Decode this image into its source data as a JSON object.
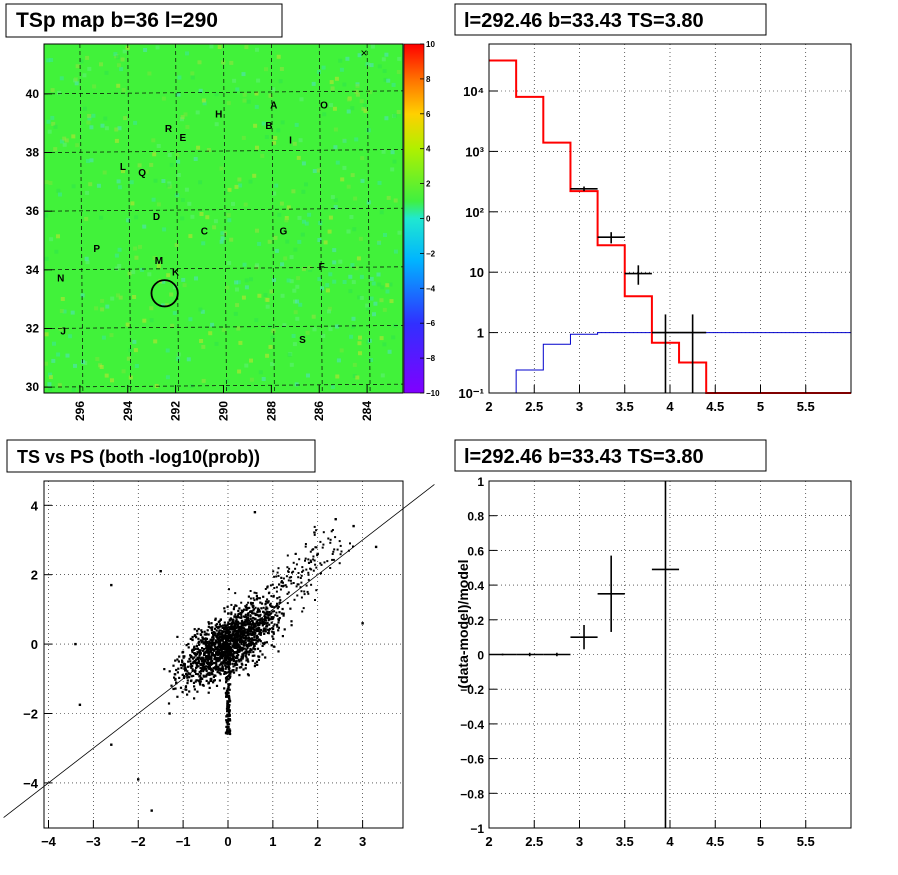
{
  "colors": {
    "frame": "#000000",
    "grid": "#000000",
    "map_background": "#41f23a",
    "spectrum_line": "#ff0000",
    "model_line": "#0000cc",
    "data_marks": "#000000"
  },
  "panels": {
    "tsmap_title": "TSp map b=36 l=290",
    "spectrum_title": "l=292.46 b=33.43 TS=3.80",
    "scatter_title": "TS vs PS (both -log10(prob))",
    "residual_title": "l=292.46 b=33.43 TS=3.80",
    "residual_ylabel": "(data-model)/model"
  },
  "chart_data": [
    {
      "type": "heatmap",
      "title": "TSp map b=36 l=290",
      "x_ticks": [
        "296",
        "294",
        "292",
        "290",
        "288",
        "286",
        "284"
      ],
      "y_ticks": [
        "40",
        "38",
        "36",
        "34",
        "32",
        "30"
      ],
      "xlim": [
        297.5,
        282.5
      ],
      "ylim": [
        29.8,
        41.7
      ],
      "colorbar": {
        "range": [
          -10,
          10
        ],
        "ticks": [
          "10",
          "8",
          "6",
          "4",
          "2",
          "0",
          "−2",
          "−4",
          "−6",
          "−8",
          "−10"
        ]
      },
      "labels": [
        {
          "text": "A",
          "l": 287.9,
          "b": 39.5
        },
        {
          "text": "O",
          "l": 285.8,
          "b": 39.5
        },
        {
          "text": "H",
          "l": 290.2,
          "b": 39.2
        },
        {
          "text": "R",
          "l": 292.3,
          "b": 38.7
        },
        {
          "text": "B",
          "l": 288.1,
          "b": 38.8
        },
        {
          "text": "E",
          "l": 291.7,
          "b": 38.4
        },
        {
          "text": "I",
          "l": 287.2,
          "b": 38.3
        },
        {
          "text": "L",
          "l": 294.2,
          "b": 37.4
        },
        {
          "text": "Q",
          "l": 293.4,
          "b": 37.2
        },
        {
          "text": "D",
          "l": 292.8,
          "b": 35.7
        },
        {
          "text": "C",
          "l": 290.8,
          "b": 35.2
        },
        {
          "text": "G",
          "l": 287.5,
          "b": 35.2
        },
        {
          "text": "P",
          "l": 295.3,
          "b": 34.6
        },
        {
          "text": "M",
          "l": 292.7,
          "b": 34.2
        },
        {
          "text": "F",
          "l": 285.9,
          "b": 34.0
        },
        {
          "text": "K",
          "l": 292.0,
          "b": 33.8
        },
        {
          "text": "N",
          "l": 296.8,
          "b": 33.6
        },
        {
          "text": "J",
          "l": 296.7,
          "b": 31.8
        },
        {
          "text": "S",
          "l": 286.7,
          "b": 31.5
        }
      ],
      "marker": {
        "l": 292.46,
        "b": 33.2,
        "radius_deg": 0.55
      }
    },
    {
      "type": "line",
      "title": "l=292.46 b=33.43 TS=3.80",
      "xlim": [
        2,
        6
      ],
      "ylim": [
        0.1,
        60000
      ],
      "yscale": "log",
      "x_ticks": [
        "2",
        "2.5",
        "3",
        "3.5",
        "4",
        "4.5",
        "5",
        "5.5"
      ],
      "y_ticks": [
        "10⁻¹",
        "1",
        "10",
        "10²",
        "10³",
        "10⁴"
      ],
      "grid": true,
      "series": [
        {
          "kind": "model_total",
          "edges": [
            2.0,
            2.3,
            2.6,
            2.9,
            3.2,
            3.5,
            3.8,
            4.1,
            4.4,
            6.0
          ],
          "values": [
            32000,
            8000,
            1400,
            220,
            28,
            4.0,
            0.68,
            0.32,
            0.1
          ]
        },
        {
          "kind": "model_component",
          "edges": [
            2.0,
            2.3,
            2.6,
            2.9,
            3.2,
            3.5,
            3.8,
            4.1,
            4.4,
            6.0
          ],
          "values": [
            0.1,
            0.24,
            0.64,
            0.94,
            1.0,
            1.0,
            1.0,
            1.0,
            1.0
          ]
        },
        {
          "kind": "data_points",
          "points": [
            {
              "x": 3.05,
              "y": 240,
              "xerr": 0.15,
              "ylo": 220,
              "yhi": 262
            },
            {
              "x": 3.35,
              "y": 38,
              "xerr": 0.15,
              "ylo": 30,
              "yhi": 46
            },
            {
              "x": 3.65,
              "y": 9.5,
              "xerr": 0.15,
              "ylo": 6.2,
              "yhi": 13
            },
            {
              "x": 3.95,
              "y": 1.0,
              "xerr": 0.15,
              "ylo": 0.1,
              "yhi": 2.0
            },
            {
              "x": 4.25,
              "y": 1.0,
              "xerr": 0.15,
              "ylo": 0.1,
              "yhi": 2.0
            }
          ]
        }
      ]
    },
    {
      "type": "scatter",
      "title": "TS vs PS (both -log10(prob))",
      "xlim": [
        -4.1,
        3.9
      ],
      "ylim": [
        -5.3,
        4.7
      ],
      "x_ticks": [
        "−4",
        "−3",
        "−2",
        "−1",
        "0",
        "1",
        "2",
        "3"
      ],
      "y_ticks": [
        "4",
        "2",
        "0",
        "−2",
        "−4"
      ],
      "grid": true,
      "diagonal": {
        "slope": 1,
        "intercept": 0
      },
      "points_sample": [
        {
          "x": 2.4,
          "y": 3.6
        },
        {
          "x": 2.8,
          "y": 3.4
        },
        {
          "x": 3.0,
          "y": 0.6
        },
        {
          "x": 3.3,
          "y": 2.8
        },
        {
          "x": -3.4,
          "y": 0.0
        },
        {
          "x": -3.3,
          "y": -1.75
        },
        {
          "x": -2.6,
          "y": -2.9
        },
        {
          "x": -2.6,
          "y": 1.7
        },
        {
          "x": -1.7,
          "y": -4.8
        },
        {
          "x": -2.0,
          "y": -3.9
        },
        {
          "x": -1.3,
          "y": -2.0
        },
        {
          "x": 0.6,
          "y": 3.8
        },
        {
          "x": 2.0,
          "y": 2.6
        },
        {
          "x": -1.5,
          "y": 2.1
        }
      ]
    },
    {
      "type": "line",
      "title": "l=292.46 b=33.43 TS=3.80",
      "ylabel": "(data-model)/model",
      "xlim": [
        2,
        6
      ],
      "ylim": [
        -1,
        1
      ],
      "x_ticks": [
        "2",
        "2.5",
        "3",
        "3.5",
        "4",
        "4.5",
        "5",
        "5.5"
      ],
      "y_ticks": [
        "1",
        "0.8",
        "0.6",
        "0.4",
        "0.2",
        "0",
        "−0.2",
        "−0.4",
        "−0.6",
        "−0.8",
        "−1"
      ],
      "grid": true,
      "points": [
        {
          "x": 2.15,
          "y": 0.0,
          "xerr": 0.15,
          "ylo": -0.005,
          "yhi": 0.005
        },
        {
          "x": 2.45,
          "y": 0.0,
          "xerr": 0.15,
          "ylo": -0.01,
          "yhi": 0.01
        },
        {
          "x": 2.75,
          "y": 0.0,
          "xerr": 0.15,
          "ylo": -0.01,
          "yhi": 0.01
        },
        {
          "x": 3.05,
          "y": 0.1,
          "xerr": 0.15,
          "ylo": 0.03,
          "yhi": 0.17
        },
        {
          "x": 3.35,
          "y": 0.35,
          "xerr": 0.15,
          "ylo": 0.13,
          "yhi": 0.57
        },
        {
          "x": 3.95,
          "y": 0.49,
          "xerr": 0.15,
          "ylo": -1.0,
          "yhi": 1.0
        }
      ]
    }
  ]
}
